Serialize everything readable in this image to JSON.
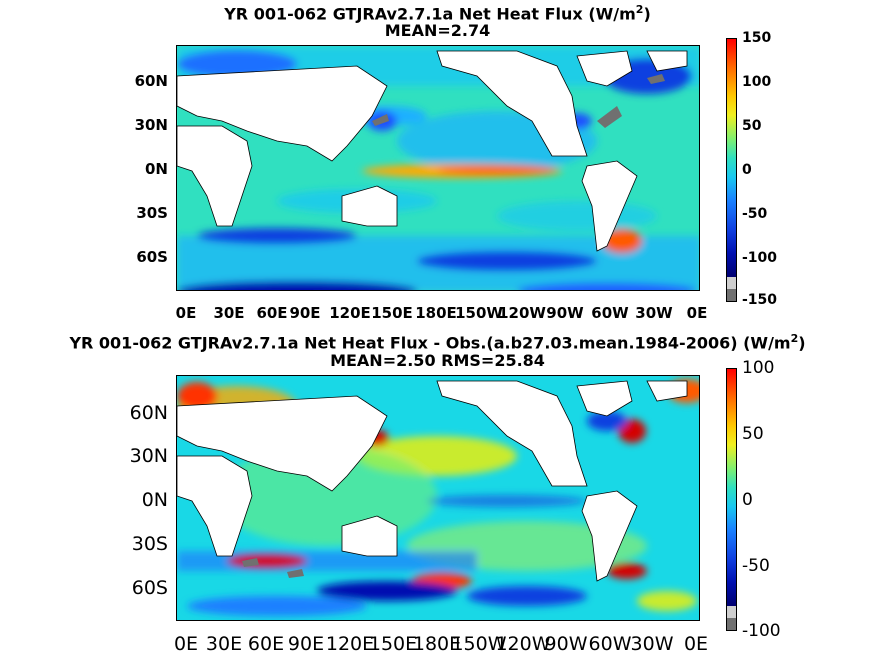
{
  "colors": {
    "land": "#ffffff",
    "masked": "#707070",
    "colormap": [
      "#7f0000",
      "#d40000",
      "#ff3300",
      "#ff7a00",
      "#ffbe00",
      "#f5f000",
      "#b5f542",
      "#6df07a",
      "#30e6b4",
      "#19d8e6",
      "#1ab0ff",
      "#2f7bff",
      "#1040e0",
      "#0010b0",
      "#000070"
    ]
  },
  "panels": [
    {
      "title_line1": "YR 001-062 GTJRAv2.7.1a  Net Heat Flux (W/m",
      "title_sup": "2",
      "title_close": ")",
      "title_line2": "MEAN=2.74",
      "y_ticks": [
        "60N",
        "30N",
        "0N",
        "30S",
        "60S"
      ],
      "x_ticks": [
        "0E",
        "30E",
        "60E",
        "90E",
        "120E",
        "150E",
        "180E",
        "150W",
        "120W",
        "90W",
        "60W",
        "30W",
        "0E"
      ],
      "colorbar_ticks": [
        "150",
        "100",
        "50",
        "0",
        "-50",
        "-100",
        "-150"
      ]
    },
    {
      "title_line1": "YR 001-062 GTJRAv2.7.1a  Net Heat Flux - Obs.(a.b27.03.mean.1984-2006) (W/m",
      "title_sup": "2",
      "title_close": ")",
      "title_line2": "MEAN=2.50 RMS=25.84",
      "y_ticks": [
        "60N",
        "30N",
        "0N",
        "30S",
        "60S"
      ],
      "x_ticks": [
        "0E",
        "30E",
        "60E",
        "90E",
        "120E",
        "150E",
        "180E",
        "150W",
        "120W",
        "90W",
        "60W",
        "30W",
        "0E"
      ],
      "colorbar_ticks": [
        "100",
        "50",
        "0",
        "-50",
        "-100"
      ]
    }
  ],
  "chart_data": [
    {
      "type": "heatmap",
      "title": "YR 001-062 GTJRAv2.7.1a  Net Heat Flux (W/m2)",
      "subtitle": "MEAN=2.74",
      "xlabel": "",
      "ylabel": "",
      "x_tick_labels": [
        "0E",
        "30E",
        "60E",
        "90E",
        "120E",
        "150E",
        "180E",
        "150W",
        "120W",
        "90W",
        "60W",
        "30W",
        "0E"
      ],
      "y_tick_labels": [
        "60N",
        "30N",
        "0N",
        "30S",
        "60S"
      ],
      "xlim": [
        0,
        360
      ],
      "ylim": [
        -80,
        88
      ],
      "color_range": [
        -150,
        150
      ],
      "colorbar_ticks": [
        150,
        100,
        50,
        0,
        -50,
        -100,
        -150
      ],
      "grid": false,
      "legend": "colorbar-right",
      "mean": 2.74
    },
    {
      "type": "heatmap",
      "title": "YR 001-062 GTJRAv2.7.1a  Net Heat Flux - Obs.(a.b27.03.mean.1984-2006) (W/m2)",
      "subtitle": "MEAN=2.50 RMS=25.84",
      "xlabel": "",
      "ylabel": "",
      "x_tick_labels": [
        "0E",
        "30E",
        "60E",
        "90E",
        "120E",
        "150E",
        "180E",
        "150W",
        "120W",
        "90W",
        "60W",
        "30W",
        "0E"
      ],
      "y_tick_labels": [
        "60N",
        "30N",
        "0N",
        "30S",
        "60S"
      ],
      "xlim": [
        0,
        360
      ],
      "ylim": [
        -80,
        88
      ],
      "color_range": [
        -100,
        100
      ],
      "colorbar_ticks": [
        100,
        50,
        0,
        -50,
        -100
      ],
      "grid": false,
      "legend": "colorbar-right",
      "mean": 2.5,
      "rms": 25.84
    }
  ]
}
